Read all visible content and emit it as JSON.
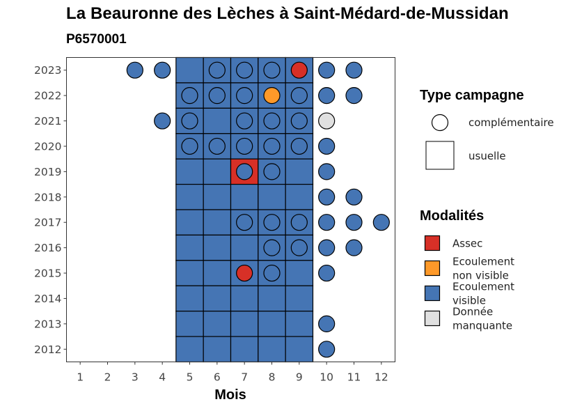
{
  "colors": {
    "Assec": "#D73027",
    "Ecoulement non visible": "#FE9929",
    "Ecoulement visible": "#4575B4",
    "Donnée manquante": "#E0E0E0"
  },
  "chart_data": {
    "type": "heatmap",
    "title": "La Beauronne des Lèches à Saint-Médard-de-Mussidan",
    "subtitle": "P6570001",
    "xlabel": "Mois",
    "ylabel": "",
    "x_ticks": [
      1,
      2,
      3,
      4,
      5,
      6,
      7,
      8,
      9,
      10,
      11,
      12
    ],
    "y_ticks": [
      2012,
      2013,
      2014,
      2015,
      2016,
      2017,
      2018,
      2019,
      2020,
      2021,
      2022,
      2023
    ],
    "xlim": [
      0.5,
      12.5
    ],
    "ylim": [
      2011.5,
      2023.5
    ],
    "grid": false,
    "legend_position": "right",
    "legend_shape": {
      "title": "Type campagne",
      "entries": [
        {
          "label": "complémentaire",
          "shape": "circle"
        },
        {
          "label": "usuelle",
          "shape": "square"
        }
      ]
    },
    "legend_color": {
      "title": "Modalités",
      "entries": [
        {
          "key": "Assec",
          "lines": [
            "Assec"
          ]
        },
        {
          "key": "Ecoulement non visible",
          "lines": [
            "Ecoulement",
            "non visible"
          ]
        },
        {
          "key": "Ecoulement visible",
          "lines": [
            "Ecoulement",
            "visible"
          ]
        },
        {
          "key": "Donnée manquante",
          "lines": [
            "Donnée",
            "manquante"
          ]
        }
      ]
    },
    "usuelle": [
      {
        "year": 2023,
        "month": 5,
        "value": "Ecoulement visible"
      },
      {
        "year": 2023,
        "month": 6,
        "value": "Ecoulement visible"
      },
      {
        "year": 2023,
        "month": 7,
        "value": "Ecoulement visible"
      },
      {
        "year": 2023,
        "month": 8,
        "value": "Ecoulement visible"
      },
      {
        "year": 2023,
        "month": 9,
        "value": "Ecoulement visible"
      },
      {
        "year": 2022,
        "month": 5,
        "value": "Ecoulement visible"
      },
      {
        "year": 2022,
        "month": 6,
        "value": "Ecoulement visible"
      },
      {
        "year": 2022,
        "month": 7,
        "value": "Ecoulement visible"
      },
      {
        "year": 2022,
        "month": 8,
        "value": "Ecoulement visible"
      },
      {
        "year": 2022,
        "month": 9,
        "value": "Ecoulement visible"
      },
      {
        "year": 2021,
        "month": 5,
        "value": "Ecoulement visible"
      },
      {
        "year": 2021,
        "month": 6,
        "value": "Ecoulement visible"
      },
      {
        "year": 2021,
        "month": 7,
        "value": "Ecoulement visible"
      },
      {
        "year": 2021,
        "month": 8,
        "value": "Ecoulement visible"
      },
      {
        "year": 2021,
        "month": 9,
        "value": "Ecoulement visible"
      },
      {
        "year": 2020,
        "month": 5,
        "value": "Ecoulement visible"
      },
      {
        "year": 2020,
        "month": 6,
        "value": "Ecoulement visible"
      },
      {
        "year": 2020,
        "month": 7,
        "value": "Ecoulement visible"
      },
      {
        "year": 2020,
        "month": 8,
        "value": "Ecoulement visible"
      },
      {
        "year": 2020,
        "month": 9,
        "value": "Ecoulement visible"
      },
      {
        "year": 2019,
        "month": 5,
        "value": "Ecoulement visible"
      },
      {
        "year": 2019,
        "month": 6,
        "value": "Ecoulement visible"
      },
      {
        "year": 2019,
        "month": 7,
        "value": "Assec"
      },
      {
        "year": 2019,
        "month": 8,
        "value": "Ecoulement visible"
      },
      {
        "year": 2019,
        "month": 9,
        "value": "Ecoulement visible"
      },
      {
        "year": 2018,
        "month": 5,
        "value": "Ecoulement visible"
      },
      {
        "year": 2018,
        "month": 6,
        "value": "Ecoulement visible"
      },
      {
        "year": 2018,
        "month": 7,
        "value": "Ecoulement visible"
      },
      {
        "year": 2018,
        "month": 8,
        "value": "Ecoulement visible"
      },
      {
        "year": 2018,
        "month": 9,
        "value": "Ecoulement visible"
      },
      {
        "year": 2017,
        "month": 5,
        "value": "Ecoulement visible"
      },
      {
        "year": 2017,
        "month": 6,
        "value": "Ecoulement visible"
      },
      {
        "year": 2017,
        "month": 7,
        "value": "Ecoulement visible"
      },
      {
        "year": 2017,
        "month": 8,
        "value": "Ecoulement visible"
      },
      {
        "year": 2017,
        "month": 9,
        "value": "Ecoulement visible"
      },
      {
        "year": 2016,
        "month": 5,
        "value": "Ecoulement visible"
      },
      {
        "year": 2016,
        "month": 6,
        "value": "Ecoulement visible"
      },
      {
        "year": 2016,
        "month": 7,
        "value": "Ecoulement visible"
      },
      {
        "year": 2016,
        "month": 8,
        "value": "Ecoulement visible"
      },
      {
        "year": 2016,
        "month": 9,
        "value": "Ecoulement visible"
      },
      {
        "year": 2015,
        "month": 5,
        "value": "Ecoulement visible"
      },
      {
        "year": 2015,
        "month": 6,
        "value": "Ecoulement visible"
      },
      {
        "year": 2015,
        "month": 7,
        "value": "Ecoulement visible"
      },
      {
        "year": 2015,
        "month": 8,
        "value": "Ecoulement visible"
      },
      {
        "year": 2015,
        "month": 9,
        "value": "Ecoulement visible"
      },
      {
        "year": 2014,
        "month": 5,
        "value": "Ecoulement visible"
      },
      {
        "year": 2014,
        "month": 6,
        "value": "Ecoulement visible"
      },
      {
        "year": 2014,
        "month": 7,
        "value": "Ecoulement visible"
      },
      {
        "year": 2014,
        "month": 8,
        "value": "Ecoulement visible"
      },
      {
        "year": 2014,
        "month": 9,
        "value": "Ecoulement visible"
      },
      {
        "year": 2013,
        "month": 5,
        "value": "Ecoulement visible"
      },
      {
        "year": 2013,
        "month": 6,
        "value": "Ecoulement visible"
      },
      {
        "year": 2013,
        "month": 7,
        "value": "Ecoulement visible"
      },
      {
        "year": 2013,
        "month": 8,
        "value": "Ecoulement visible"
      },
      {
        "year": 2013,
        "month": 9,
        "value": "Ecoulement visible"
      },
      {
        "year": 2012,
        "month": 5,
        "value": "Ecoulement visible"
      },
      {
        "year": 2012,
        "month": 6,
        "value": "Ecoulement visible"
      },
      {
        "year": 2012,
        "month": 7,
        "value": "Ecoulement visible"
      },
      {
        "year": 2012,
        "month": 8,
        "value": "Ecoulement visible"
      },
      {
        "year": 2012,
        "month": 9,
        "value": "Ecoulement visible"
      }
    ],
    "complementaire": [
      {
        "year": 2023,
        "month": 3,
        "value": "Ecoulement visible"
      },
      {
        "year": 2023,
        "month": 4,
        "value": "Ecoulement visible"
      },
      {
        "year": 2023,
        "month": 6,
        "value": "Ecoulement visible"
      },
      {
        "year": 2023,
        "month": 7,
        "value": "Ecoulement visible"
      },
      {
        "year": 2023,
        "month": 8,
        "value": "Ecoulement visible"
      },
      {
        "year": 2023,
        "month": 9,
        "value": "Assec"
      },
      {
        "year": 2023,
        "month": 10,
        "value": "Ecoulement visible"
      },
      {
        "year": 2023,
        "month": 11,
        "value": "Ecoulement visible"
      },
      {
        "year": 2022,
        "month": 5,
        "value": "Ecoulement visible"
      },
      {
        "year": 2022,
        "month": 6,
        "value": "Ecoulement visible"
      },
      {
        "year": 2022,
        "month": 7,
        "value": "Ecoulement visible"
      },
      {
        "year": 2022,
        "month": 8,
        "value": "Ecoulement non visible"
      },
      {
        "year": 2022,
        "month": 9,
        "value": "Ecoulement visible"
      },
      {
        "year": 2022,
        "month": 10,
        "value": "Ecoulement visible"
      },
      {
        "year": 2022,
        "month": 11,
        "value": "Ecoulement visible"
      },
      {
        "year": 2021,
        "month": 4,
        "value": "Ecoulement visible"
      },
      {
        "year": 2021,
        "month": 5,
        "value": "Ecoulement visible"
      },
      {
        "year": 2021,
        "month": 7,
        "value": "Ecoulement visible"
      },
      {
        "year": 2021,
        "month": 8,
        "value": "Ecoulement visible"
      },
      {
        "year": 2021,
        "month": 9,
        "value": "Ecoulement visible"
      },
      {
        "year": 2021,
        "month": 10,
        "value": "Donnée manquante"
      },
      {
        "year": 2020,
        "month": 5,
        "value": "Ecoulement visible"
      },
      {
        "year": 2020,
        "month": 6,
        "value": "Ecoulement visible"
      },
      {
        "year": 2020,
        "month": 7,
        "value": "Ecoulement visible"
      },
      {
        "year": 2020,
        "month": 8,
        "value": "Ecoulement visible"
      },
      {
        "year": 2020,
        "month": 9,
        "value": "Ecoulement visible"
      },
      {
        "year": 2020,
        "month": 10,
        "value": "Ecoulement visible"
      },
      {
        "year": 2019,
        "month": 7,
        "value": "Ecoulement visible"
      },
      {
        "year": 2019,
        "month": 8,
        "value": "Ecoulement visible"
      },
      {
        "year": 2019,
        "month": 10,
        "value": "Ecoulement visible"
      },
      {
        "year": 2018,
        "month": 10,
        "value": "Ecoulement visible"
      },
      {
        "year": 2018,
        "month": 11,
        "value": "Ecoulement visible"
      },
      {
        "year": 2017,
        "month": 7,
        "value": "Ecoulement visible"
      },
      {
        "year": 2017,
        "month": 8,
        "value": "Ecoulement visible"
      },
      {
        "year": 2017,
        "month": 9,
        "value": "Ecoulement visible"
      },
      {
        "year": 2017,
        "month": 10,
        "value": "Ecoulement visible"
      },
      {
        "year": 2017,
        "month": 11,
        "value": "Ecoulement visible"
      },
      {
        "year": 2017,
        "month": 12,
        "value": "Ecoulement visible"
      },
      {
        "year": 2016,
        "month": 8,
        "value": "Ecoulement visible"
      },
      {
        "year": 2016,
        "month": 9,
        "value": "Ecoulement visible"
      },
      {
        "year": 2016,
        "month": 10,
        "value": "Ecoulement visible"
      },
      {
        "year": 2016,
        "month": 11,
        "value": "Ecoulement visible"
      },
      {
        "year": 2015,
        "month": 7,
        "value": "Assec"
      },
      {
        "year": 2015,
        "month": 8,
        "value": "Ecoulement visible"
      },
      {
        "year": 2015,
        "month": 10,
        "value": "Ecoulement visible"
      },
      {
        "year": 2013,
        "month": 10,
        "value": "Ecoulement visible"
      },
      {
        "year": 2012,
        "month": 10,
        "value": "Ecoulement visible"
      }
    ]
  }
}
